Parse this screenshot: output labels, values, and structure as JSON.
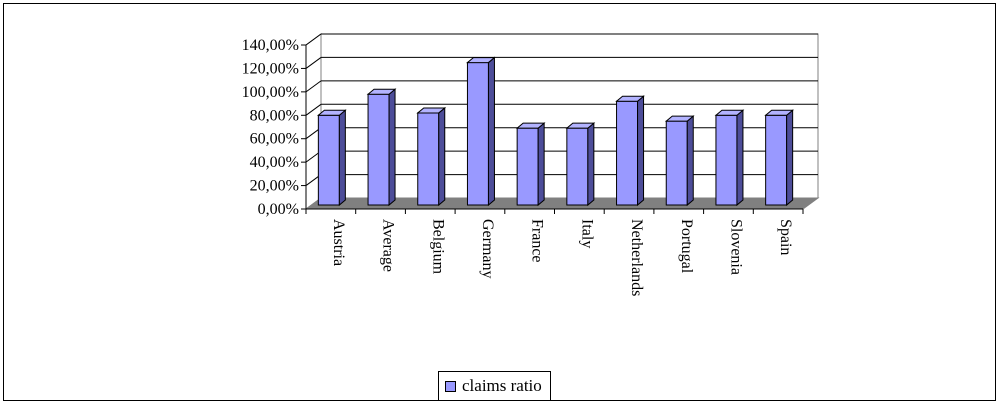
{
  "chart_data": {
    "type": "bar",
    "categories": [
      "Austria",
      "Average",
      "Belgium",
      "Germany",
      "France",
      "Italy",
      "Netherlands",
      "Portugal",
      "Slovenia",
      "Spain"
    ],
    "series": [
      {
        "name": "claims ratio",
        "values": [
          0.8,
          0.98,
          0.82,
          1.25,
          0.69,
          0.69,
          0.92,
          0.75,
          0.8,
          0.8
        ]
      }
    ],
    "ylim": [
      0,
      1.4
    ],
    "yticks": [
      "0,00%",
      "20,00%",
      "40,00%",
      "60,00%",
      "80,00%",
      "100,00%",
      "120,00%",
      "140,00%"
    ],
    "style": "3d-bar",
    "grid": true,
    "legend": "bottom-center",
    "colors": {
      "bar_front": "#9999ff",
      "bar_top": "#b3b3ff",
      "bar_side": "#4d4d99",
      "floor": "#808080",
      "edges": "#000000"
    }
  }
}
